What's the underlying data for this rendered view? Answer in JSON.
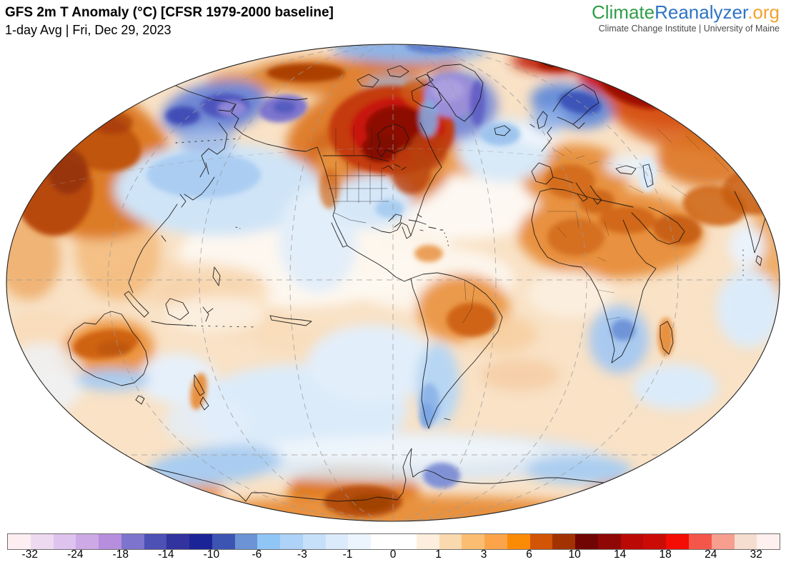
{
  "header": {
    "title": "GFS 2m T Anomaly (°C) [CFSR 1979-2000 baseline]",
    "subtitle": "1-day Avg | Fri, Dec 29, 2023"
  },
  "branding": {
    "logo_part1": "Climate",
    "logo_part2": "Reanalyzer",
    "logo_part3": ".org",
    "logo_colors": {
      "part1": "#2f9e48",
      "part2": "#2e74c4",
      "part3": "#f4a22d"
    },
    "tagline": "Climate Change Institute | University of Maine"
  },
  "chart_data": {
    "type": "heatmap",
    "title": "GFS 2m T Anomaly (°C) [CFSR 1979-2000 baseline]",
    "subtitle": "1-day Avg | Fri, Dec 29, 2023",
    "variable": "2-meter air temperature anomaly",
    "units": "°C",
    "model": "GFS",
    "baseline": "CFSR 1979-2000",
    "valid_date": "Fri, Dec 29, 2023",
    "projection": "world map, Winkel-tripel style ellipse centered on the Americas/Pacific",
    "graticule": "dashed gray; straight equator and 60S parallel, curved meridians",
    "colorbar": {
      "orientation": "horizontal",
      "position": "bottom",
      "tick_labels": [
        "-32",
        "-24",
        "-18",
        "-14",
        "-10",
        "-6",
        "-3",
        "-1",
        "0",
        "1",
        "3",
        "6",
        "10",
        "14",
        "18",
        "24",
        "32"
      ],
      "segment_bounds": [
        -40,
        -32,
        -28,
        -24,
        -21,
        -18,
        -16,
        -14,
        -12,
        -10,
        -8,
        -6,
        -4.5,
        -3,
        -2,
        -1,
        -0.5,
        0,
        0.5,
        1,
        2,
        3,
        4.5,
        6,
        8,
        10,
        12,
        14,
        16,
        18,
        21,
        24,
        28,
        32,
        40
      ],
      "segment_colors": [
        "#fdeff1",
        "#eedaf0",
        "#dec3ee",
        "#cda9e6",
        "#b78ede",
        "#7d74ce",
        "#4d50b5",
        "#32339e",
        "#1b2496",
        "#3d55b2",
        "#6b93d6",
        "#8fc6f6",
        "#aed2f8",
        "#c7e0fa",
        "#dcebfc",
        "#ecf4fd",
        "#ffffff",
        "#ffffff",
        "#fdeedd",
        "#fbd9ae",
        "#fbbd71",
        "#fba44a",
        "#fb8a05",
        "#d25405",
        "#a33203",
        "#710503",
        "#8f0806",
        "#bb0a05",
        "#cb0c06",
        "#f30d05",
        "#f4564a",
        "#f79e8e",
        "#f5ddd0",
        "#fdf0ee"
      ]
    },
    "notable_anomalies": [
      {
        "region": "Northeastern Canada / Hudson Bay / Quebec",
        "anomaly_c": "+14 to +24",
        "appearance": "dark red"
      },
      {
        "region": "Greenland",
        "anomaly_c": "-14 to -21",
        "appearance": "purple"
      },
      {
        "region": "Bering Sea / Chukotka / western Alaska",
        "anomaly_c": "-10 to -18",
        "appearance": "blue to purple"
      },
      {
        "region": "Scandinavia / Barents Sea",
        "anomaly_c": "-6 to -12",
        "appearance": "blue"
      },
      {
        "region": "Northwest Russia / Urals",
        "anomaly_c": "+12 to +18",
        "appearance": "bright red"
      },
      {
        "region": "Svalbard / Arctic Ocean north of Europe",
        "anomaly_c": "+10 to +16",
        "appearance": "red band"
      },
      {
        "region": "Northeast Asia / Siberia / China",
        "anomaly_c": "+6 to +12",
        "appearance": "dark orange with maroon cores"
      },
      {
        "region": "Western US / Rockies",
        "anomaly_c": "+3 to +8",
        "appearance": "orange"
      },
      {
        "region": "Central & southern United States / Gulf of Mexico",
        "anomaly_c": "-1 to -4",
        "appearance": "light blue"
      },
      {
        "region": "Europe / Mediterranean / Sahara / Middle East",
        "anomaly_c": "+2 to +8",
        "appearance": "orange"
      },
      {
        "region": "North Pacific (mid-latitude)",
        "anomaly_c": "-1 to -6",
        "appearance": "light blue"
      },
      {
        "region": "Interior Australia",
        "anomaly_c": "+3 to +8",
        "appearance": "orange"
      },
      {
        "region": "Eastern South Africa",
        "anomaly_c": "-2 to -6",
        "appearance": "light blue"
      },
      {
        "region": "Argentina / Patagonia",
        "anomaly_c": "-1 to -4",
        "appearance": "light blue"
      },
      {
        "region": "Interior Brazil",
        "anomaly_c": "+3 to +8",
        "appearance": "orange"
      },
      {
        "region": "West Antarctica interior",
        "anomaly_c": "+6 to +12",
        "appearance": "dark orange"
      },
      {
        "region": "Antarctic coastal seas",
        "anomaly_c": "-1 to -6",
        "appearance": "light blue"
      },
      {
        "region": "Tropical oceans",
        "anomaly_c": "0 to +2",
        "appearance": "pale orange"
      }
    ]
  }
}
